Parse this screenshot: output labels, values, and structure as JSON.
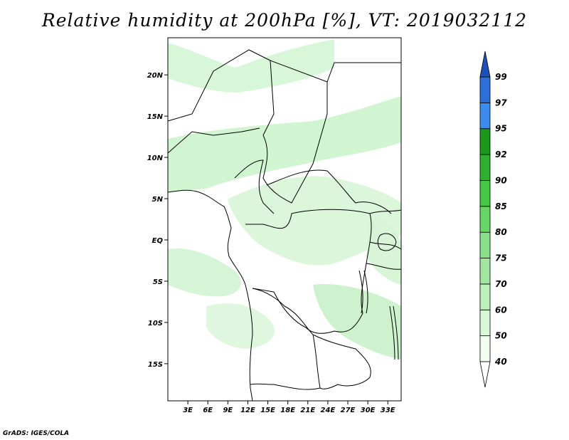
{
  "title": "Relative humidity at 200hPa [%], VT: 2019032112",
  "credit": "GrADS: IGES/COLA",
  "map": {
    "lat_labels": [
      "20N",
      "15N",
      "10N",
      "5N",
      "EQ",
      "5S",
      "10S",
      "15S"
    ],
    "lat_values": [
      20,
      15,
      10,
      5,
      0,
      -5,
      -10,
      -15
    ],
    "lon_labels": [
      "3E",
      "6E",
      "9E",
      "12E",
      "15E",
      "18E",
      "21E",
      "24E",
      "27E",
      "30E",
      "33E"
    ],
    "lon_values": [
      3,
      6,
      9,
      12,
      15,
      18,
      21,
      24,
      27,
      30,
      33
    ],
    "lon_range": [
      0,
      35
    ],
    "lat_range": [
      -19.5,
      24.5
    ]
  },
  "colorbar": {
    "levels": [
      "40",
      "50",
      "60",
      "70",
      "75",
      "80",
      "85",
      "90",
      "92",
      "95",
      "97",
      "99"
    ],
    "colors": [
      "#f0fff0",
      "#d8f8d8",
      "#bcefbc",
      "#a0e6a0",
      "#8ae08a",
      "#66d666",
      "#44c844",
      "#2db02d",
      "#1a981a",
      "#3c8cf0",
      "#2a70d8",
      "#1e50b8"
    ]
  }
}
